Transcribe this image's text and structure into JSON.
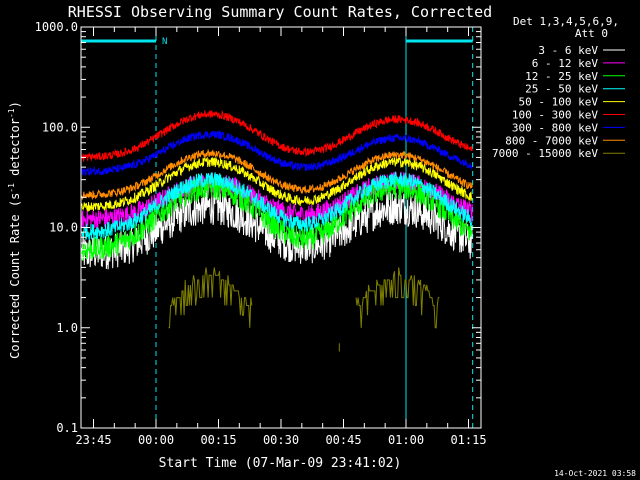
{
  "chart_data": {
    "type": "line",
    "title": "RHESSI Observing Summary Count Rates, Corrected",
    "xlabel": "Start Time (07-Mar-09 23:41:02)",
    "ylabel_main": "Corrected Count Rate (s",
    "ylabel_sup1": "-1",
    "ylabel_mid": " detector",
    "ylabel_sup2": "-1",
    "ylabel_end": ")",
    "yscale": "log",
    "ylim": [
      0.1,
      1000
    ],
    "xlim_minutes": [
      -18,
      78
    ],
    "x_unit": "minutes after 00:00",
    "x_ticks": [
      {
        "t": -15,
        "label": "23:45"
      },
      {
        "t": 0,
        "label": "00:00"
      },
      {
        "t": 15,
        "label": "00:15"
      },
      {
        "t": 30,
        "label": "00:30"
      },
      {
        "t": 45,
        "label": "00:45"
      },
      {
        "t": 60,
        "label": "01:00"
      },
      {
        "t": 75,
        "label": "01:15"
      }
    ],
    "y_ticks": [
      {
        "v": 1000,
        "label": "1000.0"
      },
      {
        "v": 100,
        "label": "100.0"
      },
      {
        "v": 10,
        "label": "10.0"
      },
      {
        "v": 1,
        "label": "1.0"
      },
      {
        "v": 0.1,
        "label": "0.1"
      }
    ],
    "legend": {
      "placement": "right",
      "header1": "Det 1,3,4,5,6,9,",
      "header2": "Att 0"
    },
    "series": [
      {
        "name": "3 - 6 keV",
        "color": "#ffffff",
        "base": 5.5,
        "peak1": 16,
        "peak2": 16,
        "noise": 0.18
      },
      {
        "name": "6 - 12 keV",
        "color": "#ff00ff",
        "base": 12,
        "peak1": 28,
        "peak2": 29,
        "noise": 0.1
      },
      {
        "name": "12 - 25 keV",
        "color": "#00ff00",
        "base": 6,
        "peak1": 25,
        "peak2": 25,
        "noise": 0.12
      },
      {
        "name": "25 - 50 keV",
        "color": "#00ffff",
        "base": 9,
        "peak1": 30,
        "peak2": 30,
        "noise": 0.08
      },
      {
        "name": "50 - 100 keV",
        "color": "#ffff00",
        "base": 16,
        "peak1": 45,
        "peak2": 45,
        "noise": 0.05
      },
      {
        "name": "100 - 300 keV",
        "color": "#ff0000",
        "base": 50,
        "peak1": 135,
        "peak2": 120,
        "noise": 0.04
      },
      {
        "name": "300 - 800 keV",
        "color": "#0000ff",
        "base": 36,
        "peak1": 85,
        "peak2": 78,
        "noise": 0.04
      },
      {
        "name": "800 - 7000 keV",
        "color": "#ff8c00",
        "base": 21,
        "peak1": 55,
        "peak2": 53,
        "noise": 0.04
      },
      {
        "name": "7000 - 15000 keV",
        "color": "#808000",
        "base": 1,
        "peak1": 3.3,
        "peak2": 3.2,
        "noise": 0.0
      }
    ],
    "peak_centers_minutes": [
      13,
      58
    ],
    "peak_width_minutes": 9,
    "markers": {
      "vertical_lines_minutes": [
        -18,
        0,
        60,
        76
      ],
      "dashed_minutes": [
        0,
        76
      ],
      "night_bars_minutes": [
        [
          -18,
          0
        ],
        [
          60,
          76
        ]
      ],
      "night_label": "N"
    }
  },
  "footer": {
    "timestamp": "14-Oct-2021 03:58"
  }
}
